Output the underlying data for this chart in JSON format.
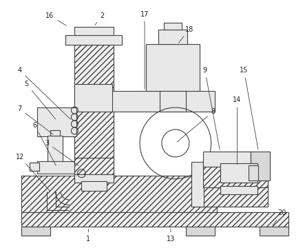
{
  "bg_color": "#ffffff",
  "line_color": "#404040",
  "fig_width": 4.43,
  "fig_height": 3.6,
  "label_fs": 7.0,
  "label_color": "#222222",
  "hatch": "////",
  "lw": 0.8
}
